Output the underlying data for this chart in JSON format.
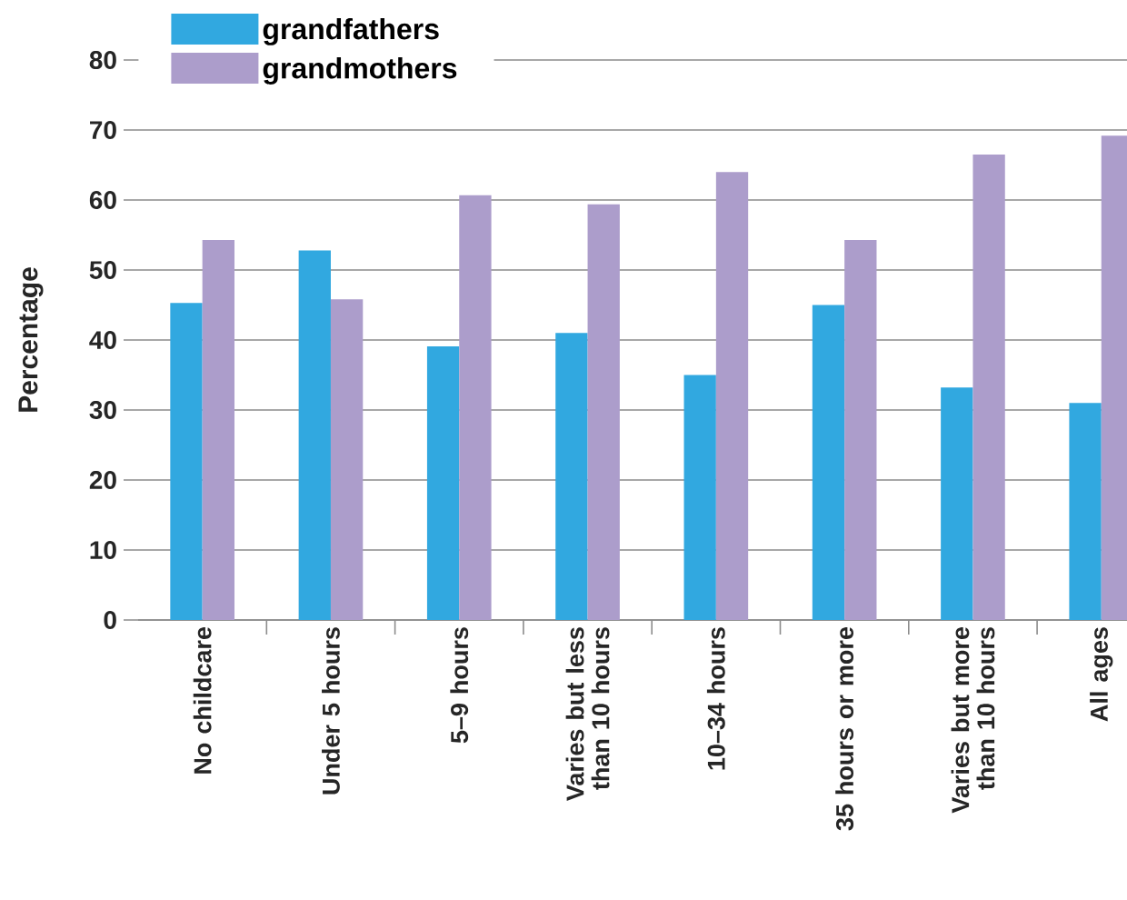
{
  "chart_data": {
    "type": "bar",
    "ylabel": "Percentage",
    "categories": [
      "No childcare",
      "Under 5 hours",
      "5–9 hours",
      "Varies but less than 10 hours",
      "10–34 hours",
      "35 hours or more",
      "Varies but more than 10 hours",
      "All ages"
    ],
    "series": [
      {
        "name": "grandfathers",
        "color": "#31a8e0",
        "values": [
          45.3,
          52.8,
          39.1,
          41,
          35,
          45,
          33.2,
          31
        ]
      },
      {
        "name": "grandmothers",
        "color": "#ac9dcb",
        "values": [
          54.3,
          45.8,
          60.7,
          59.4,
          64,
          54.3,
          66.5,
          69.2
        ]
      }
    ],
    "ylim": [
      0,
      80
    ],
    "yticks": [
      0,
      10,
      20,
      30,
      40,
      50,
      60,
      70,
      80
    ],
    "grid": "y",
    "legend": "top left"
  }
}
